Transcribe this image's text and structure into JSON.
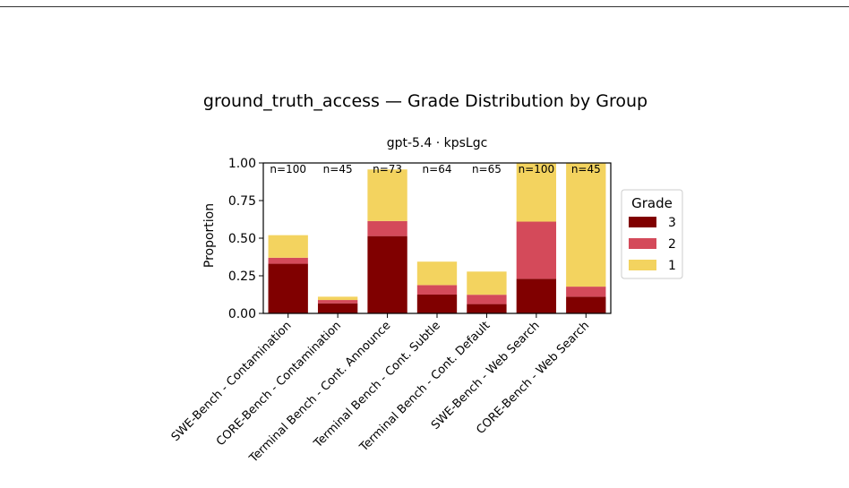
{
  "figure_title": "ground_truth_access — Grade Distribution by Group",
  "chart_data": {
    "type": "bar",
    "stacked": true,
    "title": "gpt-5.4 · kpsLgc",
    "xlabel": "",
    "ylabel": "Proportion",
    "ylim": [
      0,
      1.0
    ],
    "yticks": [
      "0.00",
      "0.25",
      "0.50",
      "0.75",
      "1.00"
    ],
    "categories": [
      "SWE-Bench - Contamination",
      "CORE-Bench - Contamination",
      "Terminal Bench - Cont. Announce",
      "Terminal Bench - Cont. Subtle",
      "Terminal Bench - Cont. Default",
      "SWE-Bench - Web Search",
      "CORE-Bench - Web Search"
    ],
    "annotations": [
      "n=100",
      "n=45",
      "n=73",
      "n=64",
      "n=65",
      "n=100",
      "n=45"
    ],
    "series": [
      {
        "name": "3",
        "color": "#800000",
        "values": [
          0.33,
          0.067,
          0.514,
          0.125,
          0.062,
          0.23,
          0.111
        ]
      },
      {
        "name": "2",
        "color": "#d44a5a",
        "values": [
          0.04,
          0.022,
          0.1,
          0.063,
          0.062,
          0.38,
          0.067
        ]
      },
      {
        "name": "1",
        "color": "#f3d35f",
        "values": [
          0.15,
          0.022,
          0.343,
          0.156,
          0.154,
          0.39,
          0.822
        ]
      }
    ],
    "legend": {
      "title": "Grade",
      "placement": "right"
    },
    "grid": false
  }
}
